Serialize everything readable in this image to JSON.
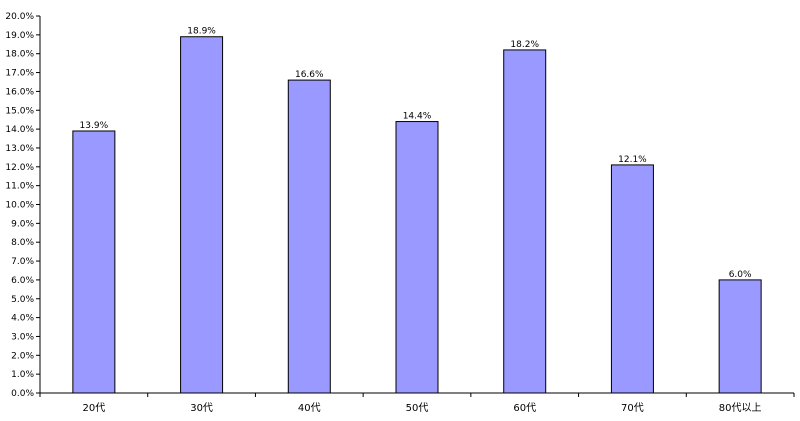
{
  "chart_data": {
    "type": "bar",
    "title": "",
    "xlabel": "",
    "ylabel": "",
    "categories": [
      "20代",
      "30代",
      "40代",
      "50代",
      "60代",
      "70代",
      "80代以上"
    ],
    "values": [
      13.9,
      18.9,
      16.6,
      14.4,
      18.2,
      12.1,
      6.0
    ],
    "data_labels": [
      "13.9%",
      "18.9%",
      "16.6%",
      "14.4%",
      "18.2%",
      "12.1%",
      "6.0%"
    ],
    "ylim": [
      0,
      20
    ],
    "ytick_labels": [
      "0.0%",
      "1.0%",
      "2.0%",
      "3.0%",
      "4.0%",
      "5.0%",
      "6.0%",
      "7.0%",
      "8.0%",
      "9.0%",
      "10.0%",
      "11.0%",
      "12.0%",
      "13.0%",
      "14.0%",
      "15.0%",
      "16.0%",
      "17.0%",
      "18.0%",
      "19.0%",
      "20.0%"
    ],
    "grid": false,
    "legend": "none",
    "bar_color": "#9999ff",
    "bar_edge_color": "#000000"
  }
}
